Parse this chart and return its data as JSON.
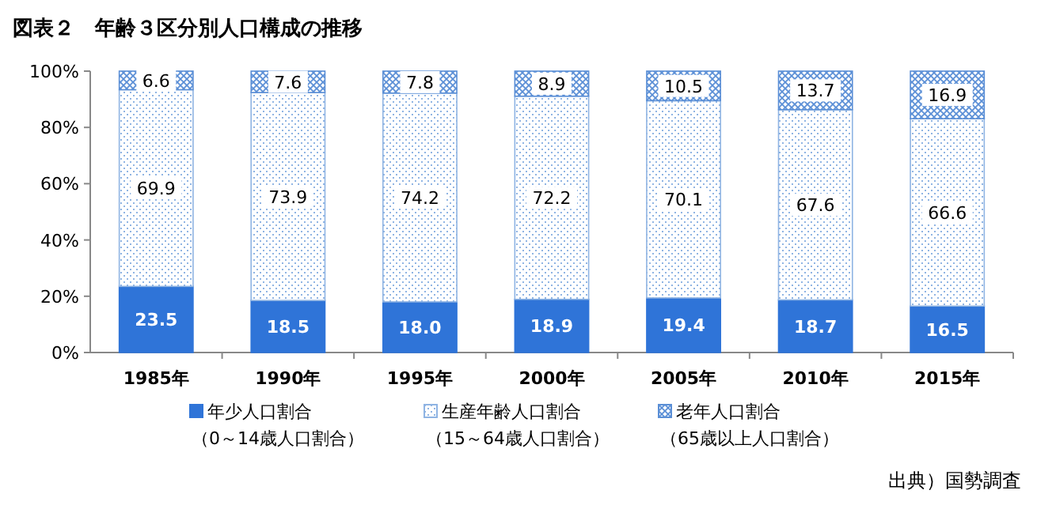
{
  "chart_data": {
    "type": "bar",
    "stacked": true,
    "title": "図表２　年齢３区分別人口構成の推移",
    "categories": [
      "1985年",
      "1990年",
      "1995年",
      "2000年",
      "2005年",
      "2010年",
      "2015年"
    ],
    "series": [
      {
        "name": "年少人口割合（0～14歳人口割合）",
        "color": "#2f74d8",
        "values": [
          23.5,
          18.5,
          18.0,
          18.9,
          19.4,
          18.7,
          16.5
        ],
        "value_labels": [
          "23.5",
          "18.5",
          "18.0",
          "18.9",
          "19.4",
          "18.7",
          "16.5"
        ]
      },
      {
        "name": "生産年齢人口割合（15～64歳人口割合）",
        "color": "#8fb4e3",
        "values": [
          69.9,
          73.9,
          74.2,
          72.2,
          70.1,
          67.6,
          66.6
        ]
      },
      {
        "name": "老年人口割合（65歳以上人口割合）",
        "color": "#5b8fd6",
        "values": [
          6.6,
          7.6,
          7.8,
          8.9,
          10.5,
          13.7,
          16.9
        ]
      }
    ],
    "ylim": [
      0,
      100
    ],
    "yticks": [
      {
        "value": 0,
        "label": "0%"
      },
      {
        "value": 20,
        "label": "20%"
      },
      {
        "value": 40,
        "label": "40%"
      },
      {
        "value": 60,
        "label": "60%"
      },
      {
        "value": 80,
        "label": "80%"
      },
      {
        "value": 100,
        "label": "100%"
      }
    ],
    "data_labels": true,
    "legend": "bottom",
    "annotations": [
      "出典）国勢調査"
    ]
  }
}
